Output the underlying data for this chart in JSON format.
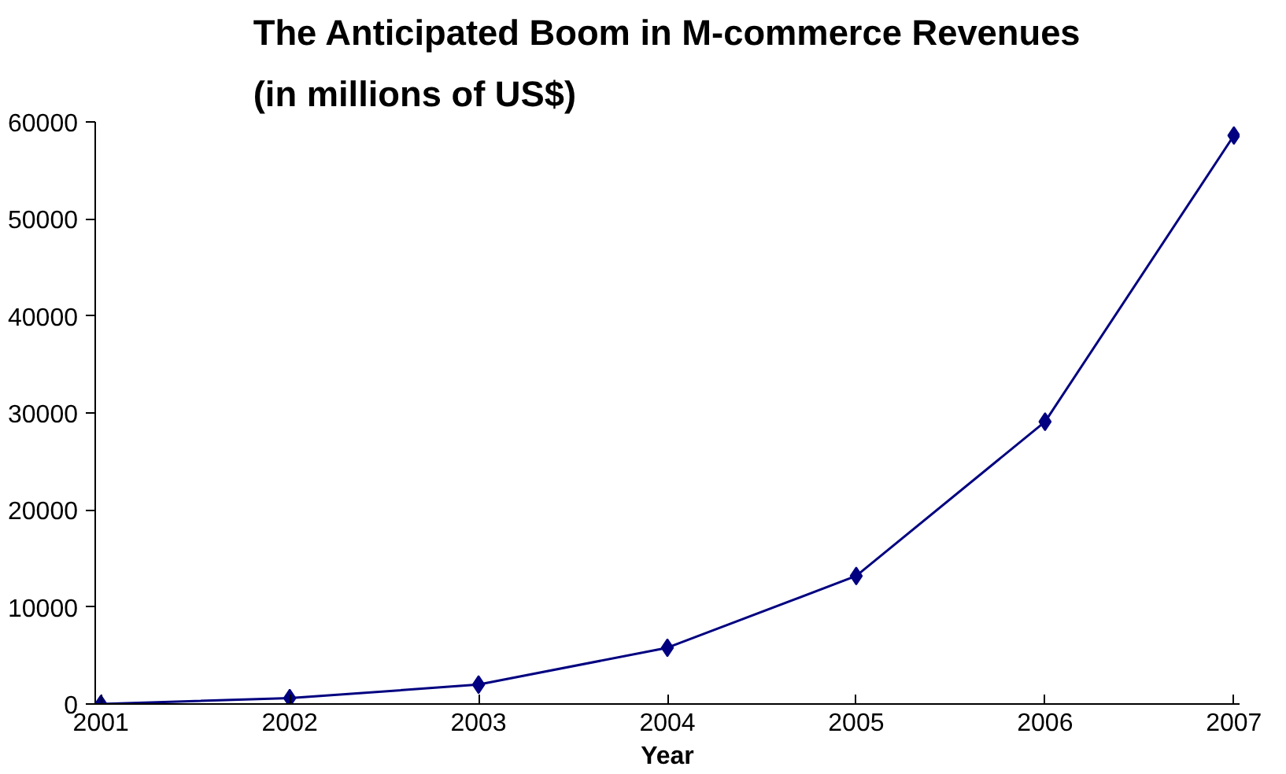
{
  "chart_data": {
    "type": "line",
    "title": "The Anticipated Boom in M-commerce Revenues\n(in millions of US$)",
    "xlabel": "Year",
    "categories": [
      "2001",
      "2002",
      "2003",
      "2004",
      "2005",
      "2006",
      "2007"
    ],
    "series": [
      {
        "color": "#000080",
        "values": [
          0,
          600,
          2000,
          5800,
          13200,
          29100,
          58600
        ]
      }
    ],
    "ylim": [
      0,
      60000
    ],
    "yticks": [
      0,
      10000,
      20000,
      30000,
      40000,
      50000,
      60000
    ],
    "marker": "diamond",
    "line_style": "solid",
    "grid": false
  }
}
